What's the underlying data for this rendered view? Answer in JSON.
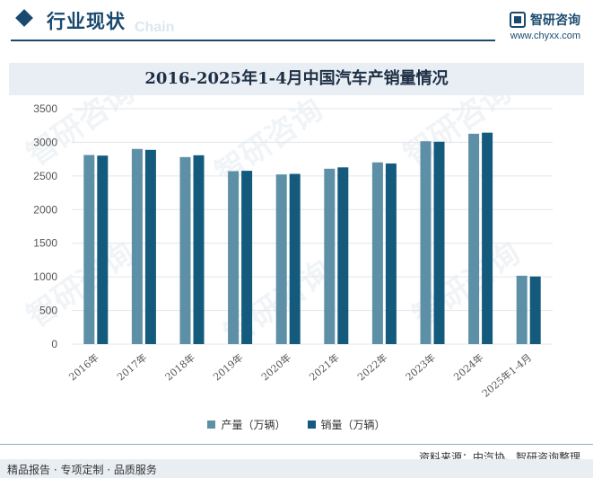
{
  "header": {
    "section_title": "行业现状",
    "section_watermark": "Chain",
    "brand_name": "智研咨询",
    "brand_url": "www.chyxx.com"
  },
  "colors": {
    "production": "#5d8fa6",
    "sales": "#135a7c",
    "grid": "#e2e6ea",
    "axis_text": "#555555",
    "brand": "#1a4a6e"
  },
  "chart_data": {
    "type": "bar",
    "title": "2016-2025年1-4月中国汽车产销量情况",
    "categories": [
      "2016年",
      "2017年",
      "2018年",
      "2019年",
      "2020年",
      "2021年",
      "2022年",
      "2023年",
      "2024年",
      "2025年1-4月"
    ],
    "series": [
      {
        "name": "产量（万辆）",
        "values": [
          2812,
          2902,
          2781,
          2572,
          2523,
          2608,
          2702,
          3016,
          3128,
          1017
        ]
      },
      {
        "name": "销量（万辆）",
        "values": [
          2803,
          2888,
          2808,
          2577,
          2531,
          2628,
          2686,
          3009,
          3144,
          1006
        ]
      }
    ],
    "ylim": [
      0,
      3500
    ],
    "yticks": [
      0,
      500,
      1000,
      1500,
      2000,
      2500,
      3000,
      3500
    ],
    "grid": true,
    "legend_position": "bottom-center"
  },
  "footer": {
    "source": "资料来源：中汽协、智研咨询整理",
    "slogan": "精品报告 · 专项定制 · 品质服务"
  }
}
